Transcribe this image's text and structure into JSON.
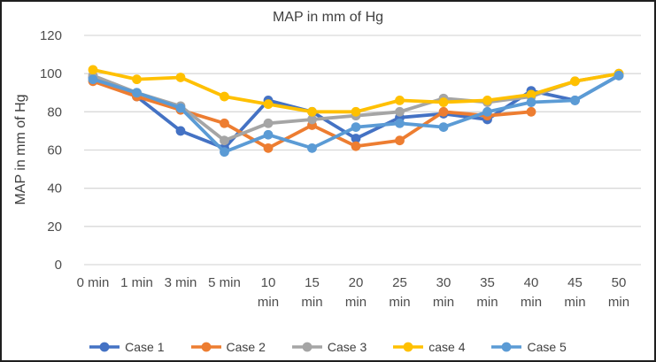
{
  "figure": {
    "title": "MAP in mm of Hg",
    "y_axis_title": "MAP in mm of Hg"
  },
  "chart_data": {
    "type": "line",
    "title": "MAP in mm of Hg",
    "xlabel": "",
    "ylabel": "MAP in mm of Hg",
    "ylim": [
      0,
      120
    ],
    "yticks": [
      0,
      20,
      40,
      60,
      80,
      100,
      120
    ],
    "grid": true,
    "legend_position": "bottom",
    "marker": "circle",
    "categories": [
      "0 min",
      "1 min",
      "3 min",
      "5 min",
      "10 min",
      "15 min",
      "20 min",
      "25 min",
      "30 min",
      "35 min",
      "40 min",
      "45 min",
      "50 min"
    ],
    "series": [
      {
        "name": "Case 1",
        "color": "#4472C4",
        "values": [
          98,
          88,
          70,
          61,
          86,
          80,
          66,
          77,
          79,
          76,
          91,
          86,
          99
        ]
      },
      {
        "name": "Case 2",
        "color": "#ED7D31",
        "values": [
          96,
          88,
          81,
          74,
          61,
          73,
          62,
          65,
          80,
          78,
          80,
          null,
          null
        ]
      },
      {
        "name": "Case 3",
        "color": "#A5A5A5",
        "values": [
          99,
          90,
          83,
          65,
          74,
          76,
          78,
          80,
          87,
          85,
          88,
          96,
          100
        ]
      },
      {
        "name": "case 4",
        "color": "#FFC000",
        "values": [
          102,
          97,
          98,
          88,
          84,
          80,
          80,
          86,
          85,
          86,
          89,
          96,
          100
        ]
      },
      {
        "name": "Case 5",
        "color": "#5B9BD5",
        "values": [
          97,
          90,
          82,
          59,
          68,
          61,
          72,
          74,
          72,
          80,
          85,
          86,
          99
        ]
      }
    ]
  },
  "styles": {
    "grid_color": "#D9D9D9",
    "axis_text_color": "#4d4d4d",
    "title_color": "#3f3f3f",
    "border_color": "#1f1f1f",
    "background": "#FFFFFF"
  }
}
